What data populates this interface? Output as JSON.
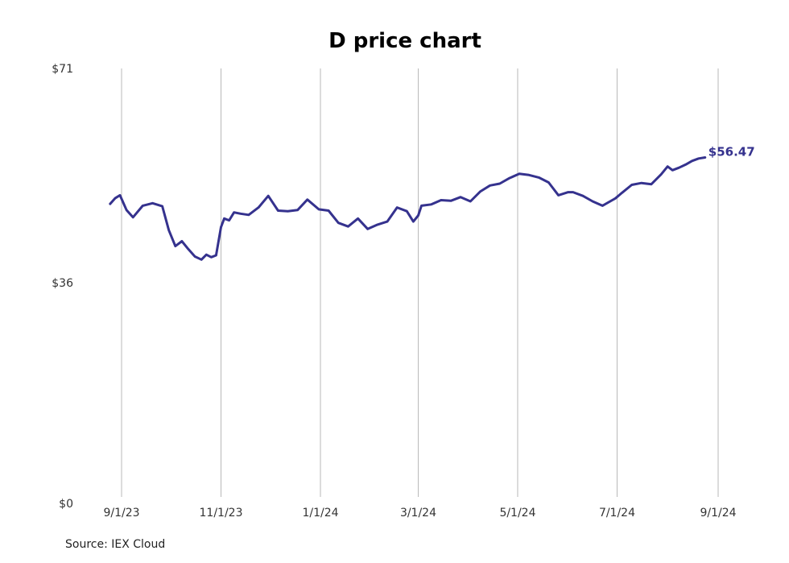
{
  "chart_data": {
    "type": "line",
    "title": "D price chart",
    "xlabel": "",
    "ylabel": "",
    "x_ticks": [
      "9/1/23",
      "11/1/23",
      "1/1/24",
      "3/1/24",
      "5/1/24",
      "7/1/24",
      "9/1/24"
    ],
    "y_ticks": [
      "$0",
      "$36",
      "$71"
    ],
    "ylim": [
      0,
      71
    ],
    "xlim": [
      "2023-08-25",
      "2024-09-01"
    ],
    "grid": "vertical",
    "line_color": "#35328e",
    "last_value_label": "$56.47",
    "series": [
      {
        "x": [
          "2023-08-25",
          "2023-08-28",
          "2023-08-31",
          "2023-09-04",
          "2023-09-08",
          "2023-09-14",
          "2023-09-20",
          "2023-09-26",
          "2023-09-30",
          "2023-10-04",
          "2023-10-08",
          "2023-10-12",
          "2023-10-16",
          "2023-10-20",
          "2023-10-23",
          "2023-10-26",
          "2023-10-29",
          "2023-11-01",
          "2023-11-03",
          "2023-11-06",
          "2023-11-09",
          "2023-11-13",
          "2023-11-18",
          "2023-11-24",
          "2023-11-30",
          "2023-12-06",
          "2023-12-12",
          "2023-12-18",
          "2023-12-24",
          "2023-12-31",
          "2024-01-06",
          "2024-01-12",
          "2024-01-18",
          "2024-01-24",
          "2024-01-30",
          "2024-02-05",
          "2024-02-11",
          "2024-02-17",
          "2024-02-23",
          "2024-02-27",
          "2024-03-01",
          "2024-03-03",
          "2024-03-09",
          "2024-03-15",
          "2024-03-21",
          "2024-03-27",
          "2024-04-02",
          "2024-04-08",
          "2024-04-14",
          "2024-04-20",
          "2024-04-26",
          "2024-05-02",
          "2024-05-08",
          "2024-05-14",
          "2024-05-20",
          "2024-05-26",
          "2024-06-01",
          "2024-06-04",
          "2024-06-10",
          "2024-06-16",
          "2024-06-22",
          "2024-06-30",
          "2024-07-04",
          "2024-07-10",
          "2024-07-16",
          "2024-07-22",
          "2024-07-28",
          "2024-08-01",
          "2024-08-04",
          "2024-08-08",
          "2024-08-12",
          "2024-08-16",
          "2024-08-20",
          "2024-08-24"
        ],
        "values": [
          48.9,
          49.8,
          50.3,
          47.9,
          46.7,
          48.6,
          49.0,
          48.5,
          44.6,
          42.0,
          42.8,
          41.5,
          40.3,
          39.8,
          40.6,
          40.2,
          40.5,
          45.1,
          46.5,
          46.2,
          47.5,
          47.3,
          47.1,
          48.3,
          50.2,
          47.8,
          47.7,
          47.9,
          49.6,
          48.0,
          47.8,
          45.8,
          45.2,
          46.5,
          44.8,
          45.5,
          46.0,
          48.3,
          47.7,
          46.0,
          47.0,
          48.6,
          48.8,
          49.5,
          49.4,
          50.0,
          49.3,
          50.9,
          51.9,
          52.2,
          53.1,
          53.8,
          53.6,
          53.2,
          52.4,
          50.3,
          50.8,
          50.8,
          50.2,
          49.3,
          48.6,
          49.8,
          50.7,
          52.0,
          52.3,
          52.1,
          53.7,
          55.0,
          54.4,
          54.8,
          55.3,
          55.9,
          56.3,
          56.47
        ]
      }
    ]
  },
  "footer": {
    "source": "Source: IEX Cloud"
  }
}
